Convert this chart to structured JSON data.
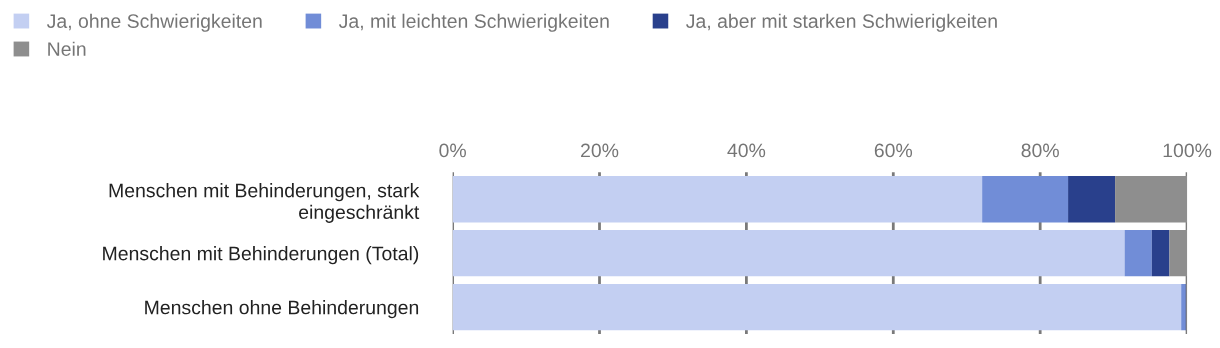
{
  "chart_data": {
    "type": "bar",
    "orientation": "horizontal",
    "stacked": true,
    "categories": [
      "Menschen mit Behinderungen, stark\neingeschränkt",
      "Menschen mit Behinderungen (Total)",
      "Menschen ohne Behinderungen"
    ],
    "series": [
      {
        "name": "Ja, ohne Schwierigkeiten",
        "color": "#c3cff2",
        "values": [
          72.1,
          91.5,
          99.2
        ]
      },
      {
        "name": "Ja, mit leichten Schwierigkeiten",
        "color": "#718dd7",
        "values": [
          11.7,
          3.7,
          0.6
        ]
      },
      {
        "name": "Ja, aber mit starken Schwierigkeiten",
        "color": "#29408c",
        "values": [
          6.4,
          2.4,
          0.1
        ]
      },
      {
        "name": "Nein",
        "color": "#8e8e8e",
        "values": [
          9.8,
          2.4,
          0.1
        ]
      }
    ],
    "xlim": [
      0,
      100
    ],
    "xticks": [
      {
        "value": 0,
        "label": "0%"
      },
      {
        "value": 20,
        "label": "20%"
      },
      {
        "value": 40,
        "label": "40%"
      },
      {
        "value": 60,
        "label": "60%"
      },
      {
        "value": 80,
        "label": "80%"
      },
      {
        "value": 100,
        "label": "100%"
      }
    ],
    "grid": "x",
    "legend": "top"
  }
}
